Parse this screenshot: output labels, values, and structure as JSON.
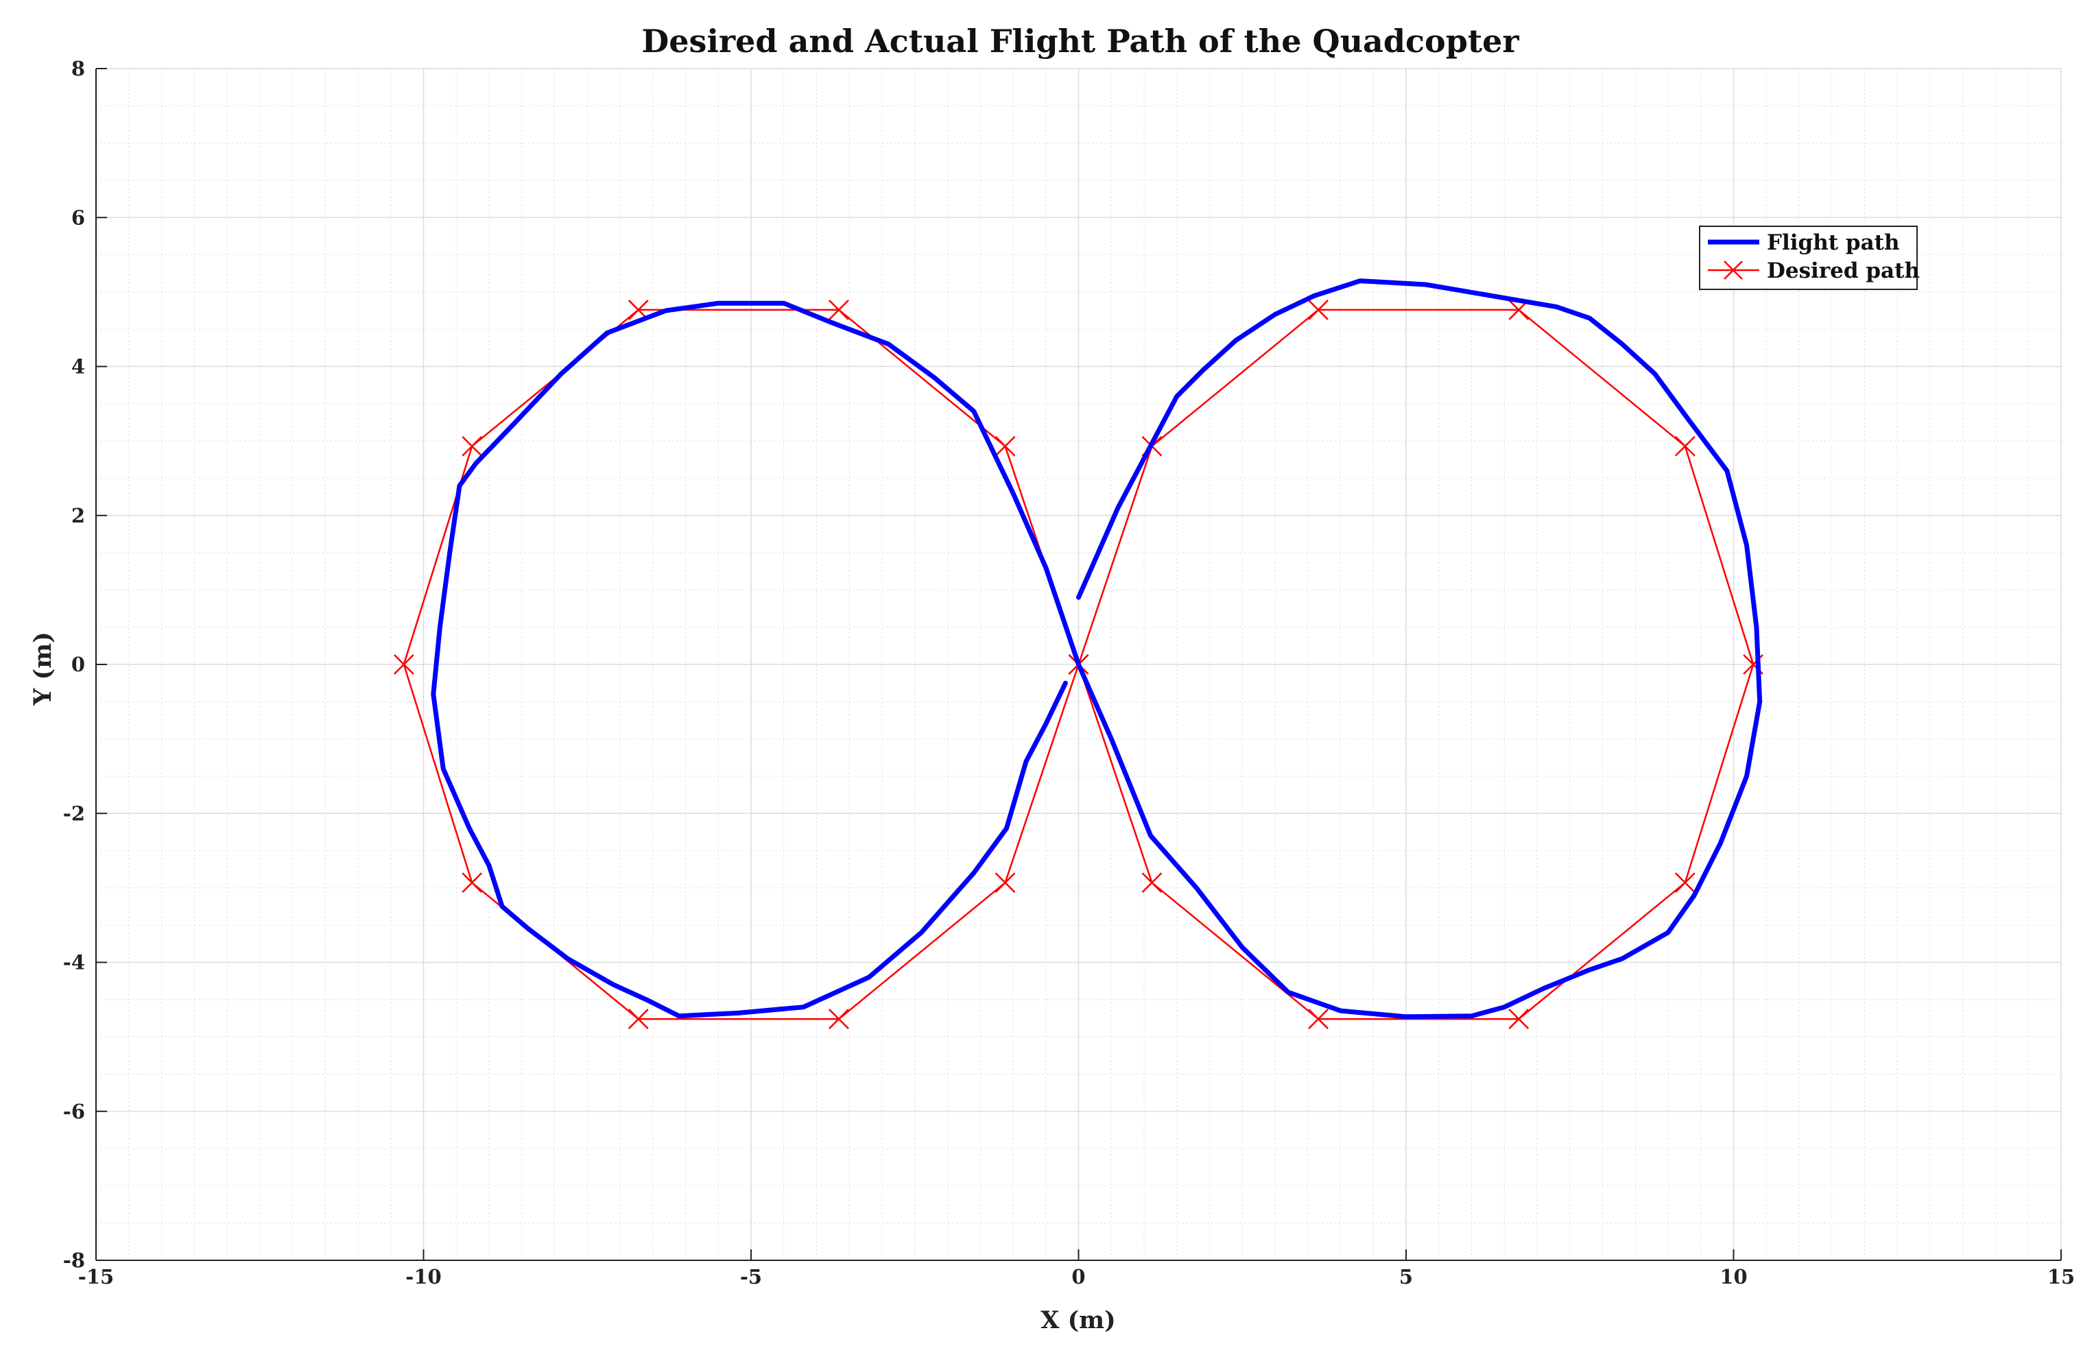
{
  "chart_data": {
    "type": "line",
    "title": "Desired and Actual Flight Path of the Quadcopter",
    "xlabel": "X (m)",
    "ylabel": "Y (m)",
    "xlim": [
      -15,
      15
    ],
    "ylim": [
      -8,
      8
    ],
    "x_ticks": [
      -15,
      -10,
      -5,
      0,
      5,
      10,
      15
    ],
    "y_ticks": [
      -8,
      -6,
      -4,
      -2,
      0,
      2,
      4,
      6,
      8
    ],
    "x_tick_labels": [
      "-15",
      "-10",
      "-5",
      "0",
      "5",
      "10",
      "15"
    ],
    "y_tick_labels": [
      "-8",
      "-6",
      "-4",
      "-2",
      "0",
      "2",
      "4",
      "6",
      "8"
    ],
    "grid": true,
    "minor_grid": true,
    "legend_position": "top-right",
    "series": [
      {
        "name": "Flight path",
        "color": "#0000ff",
        "style": "thick-line",
        "points": [
          [
            0.0,
            0.9
          ],
          [
            0.3,
            1.5
          ],
          [
            0.6,
            2.1
          ],
          [
            0.9,
            2.6
          ],
          [
            1.2,
            3.1
          ],
          [
            1.5,
            3.6
          ],
          [
            1.9,
            3.95
          ],
          [
            2.4,
            4.35
          ],
          [
            3.0,
            4.7
          ],
          [
            3.6,
            4.95
          ],
          [
            4.3,
            5.15
          ],
          [
            5.3,
            5.1
          ],
          [
            6.3,
            4.95
          ],
          [
            7.3,
            4.8
          ],
          [
            7.8,
            4.65
          ],
          [
            8.3,
            4.3
          ],
          [
            8.8,
            3.9
          ],
          [
            9.3,
            3.3
          ],
          [
            9.9,
            2.6
          ],
          [
            10.2,
            1.6
          ],
          [
            10.35,
            0.5
          ],
          [
            10.4,
            -0.5
          ],
          [
            10.2,
            -1.5
          ],
          [
            9.8,
            -2.4
          ],
          [
            9.4,
            -3.1
          ],
          [
            9.0,
            -3.6
          ],
          [
            8.3,
            -3.95
          ],
          [
            7.8,
            -4.1
          ],
          [
            7.1,
            -4.35
          ],
          [
            6.5,
            -4.6
          ],
          [
            6.0,
            -4.72
          ],
          [
            5.0,
            -4.73
          ],
          [
            4.0,
            -4.65
          ],
          [
            3.2,
            -4.4
          ],
          [
            2.5,
            -3.8
          ],
          [
            1.8,
            -3.0
          ],
          [
            1.1,
            -2.3
          ],
          [
            0.5,
            -1.0
          ],
          [
            0.0,
            0.0
          ],
          [
            -0.5,
            1.3
          ],
          [
            -1.0,
            2.3
          ],
          [
            -1.6,
            3.4
          ],
          [
            -2.2,
            3.85
          ],
          [
            -2.9,
            4.3
          ],
          [
            -3.8,
            4.6
          ],
          [
            -4.5,
            4.85
          ],
          [
            -5.5,
            4.85
          ],
          [
            -6.3,
            4.75
          ],
          [
            -7.2,
            4.45
          ],
          [
            -7.9,
            3.9
          ],
          [
            -8.6,
            3.25
          ],
          [
            -9.2,
            2.7
          ],
          [
            -9.45,
            2.4
          ],
          [
            -9.6,
            1.5
          ],
          [
            -9.75,
            0.5
          ],
          [
            -9.85,
            -0.4
          ],
          [
            -9.7,
            -1.4
          ],
          [
            -9.3,
            -2.2
          ],
          [
            -9.0,
            -2.7
          ],
          [
            -8.8,
            -3.25
          ],
          [
            -8.4,
            -3.55
          ],
          [
            -7.8,
            -3.95
          ],
          [
            -7.1,
            -4.3
          ],
          [
            -6.6,
            -4.5
          ],
          [
            -6.1,
            -4.72
          ],
          [
            -5.2,
            -4.68
          ],
          [
            -4.2,
            -4.6
          ],
          [
            -3.2,
            -4.2
          ],
          [
            -2.4,
            -3.6
          ],
          [
            -1.6,
            -2.8
          ],
          [
            -1.1,
            -2.2
          ],
          [
            -0.8,
            -1.3
          ],
          [
            -0.5,
            -0.8
          ],
          [
            -0.2,
            -0.25
          ]
        ]
      },
      {
        "name": "Desired path",
        "color": "#ff0000",
        "style": "line-x-markers",
        "points": [
          [
            0,
            0
          ],
          [
            1.12,
            2.93
          ],
          [
            3.66,
            4.76
          ],
          [
            6.72,
            4.76
          ],
          [
            9.26,
            2.93
          ],
          [
            10.3,
            0
          ],
          [
            9.26,
            -2.93
          ],
          [
            6.72,
            -4.76
          ],
          [
            3.66,
            -4.76
          ],
          [
            1.12,
            -2.93
          ],
          [
            0,
            0
          ],
          [
            -1.12,
            2.93
          ],
          [
            -3.66,
            4.76
          ],
          [
            -6.72,
            4.76
          ],
          [
            -9.26,
            2.93
          ],
          [
            -10.3,
            0
          ],
          [
            -9.26,
            -2.93
          ],
          [
            -6.72,
            -4.76
          ],
          [
            -3.66,
            -4.76
          ],
          [
            -1.12,
            -2.93
          ],
          [
            0,
            0
          ]
        ]
      }
    ]
  }
}
